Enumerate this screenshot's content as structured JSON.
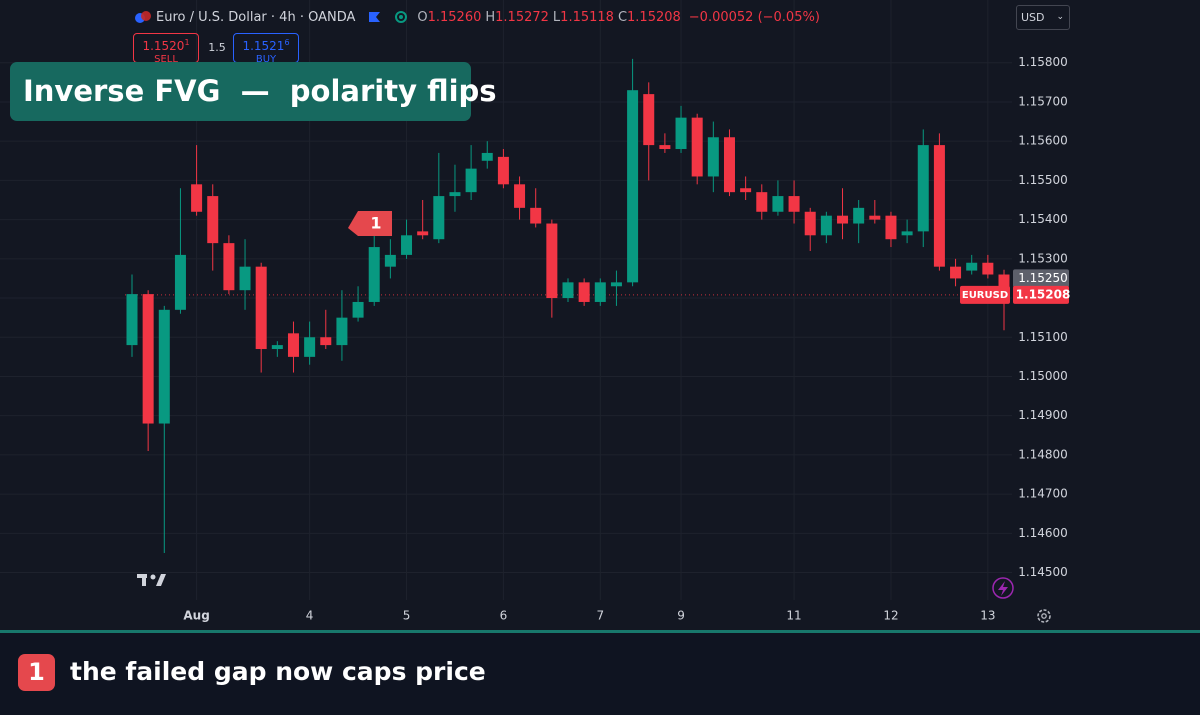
{
  "chart_data": {
    "type": "candlestick",
    "symbol_title": "Euro / U.S. Dollar · 4h · OANDA",
    "ohlc_header": [
      {
        "key": "O",
        "value": "1.15260"
      },
      {
        "key": "H",
        "value": "1.15272"
      },
      {
        "key": "L",
        "value": "1.15118"
      },
      {
        "key": "C",
        "value": "1.15208"
      }
    ],
    "change": "−0.00052 (−0.05%)",
    "sell": {
      "price": "1.1520",
      "pip": "1",
      "label": "SELL"
    },
    "spread": "1.5",
    "buy": {
      "price": "1.1521",
      "pip": "6",
      "label": "BUY"
    },
    "currency": "USD",
    "title": "Inverse FVG  —  polarity flips",
    "up_color": "#089981",
    "down_color": "#f23645",
    "categories": [
      null,
      null,
      null,
      null,
      "Aug",
      null,
      null,
      null,
      null,
      null,
      null,
      "4",
      null,
      null,
      null,
      null,
      null,
      "5",
      null,
      null,
      null,
      null,
      null,
      "6",
      null,
      null,
      null,
      null,
      null,
      "7",
      null,
      null,
      null,
      null,
      "9",
      null,
      null,
      null,
      null,
      null,
      null,
      "11",
      null,
      null,
      null,
      null,
      null,
      "12",
      null,
      null,
      null,
      null,
      null,
      "13",
      null
    ],
    "open": [
      1.1508,
      1.1521,
      1.1488,
      1.1517,
      1.1549,
      1.1546,
      1.1534,
      1.1522,
      1.1528,
      1.1507,
      1.1511,
      1.1505,
      1.151,
      1.1508,
      1.1515,
      1.1519,
      1.1528,
      1.1531,
      1.1537,
      1.1535,
      1.1546,
      1.1547,
      1.1555,
      1.1556,
      1.1549,
      1.1543,
      1.1539,
      1.152,
      1.1524,
      1.1519,
      1.1523,
      1.1524,
      1.1572,
      1.1559,
      1.1558,
      1.1566,
      1.1551,
      1.1561,
      1.1548,
      1.1547,
      1.1542,
      1.1546,
      1.1542,
      1.1536,
      1.1541,
      1.1539,
      1.1541,
      1.1541,
      1.1536,
      1.1537,
      1.1559,
      1.1528,
      1.1527,
      1.1529,
      1.1526
    ],
    "high": [
      1.1526,
      1.1522,
      1.1518,
      1.1548,
      1.1559,
      1.1549,
      1.1536,
      1.1535,
      1.1529,
      1.1509,
      1.1514,
      1.1514,
      1.1517,
      1.1522,
      1.1523,
      1.1537,
      1.1535,
      1.154,
      1.1545,
      1.1557,
      1.1554,
      1.1559,
      1.156,
      1.1558,
      1.1551,
      1.1548,
      1.154,
      1.1525,
      1.1525,
      1.1525,
      1.1527,
      1.1581,
      1.1575,
      1.1562,
      1.1569,
      1.1567,
      1.1565,
      1.1563,
      1.1551,
      1.1549,
      1.155,
      1.155,
      1.1543,
      1.1542,
      1.1548,
      1.1545,
      1.1545,
      1.1542,
      1.154,
      1.1563,
      1.1562,
      1.153,
      1.1531,
      1.1531,
      1.15272
    ],
    "low": [
      1.1505,
      1.1481,
      1.1455,
      1.1516,
      1.1541,
      1.1527,
      1.1521,
      1.1517,
      1.1501,
      1.1505,
      1.1501,
      1.1503,
      1.1507,
      1.1504,
      1.1514,
      1.1518,
      1.1525,
      1.153,
      1.1535,
      1.1534,
      1.1542,
      1.1545,
      1.1553,
      1.1548,
      1.154,
      1.1538,
      1.1515,
      1.1519,
      1.1518,
      1.1518,
      1.1518,
      1.1523,
      1.155,
      1.1557,
      1.1557,
      1.1549,
      1.1547,
      1.1546,
      1.1545,
      1.154,
      1.1541,
      1.1539,
      1.1532,
      1.1534,
      1.1535,
      1.1534,
      1.1539,
      1.1533,
      1.1534,
      1.1533,
      1.1527,
      1.1523,
      1.1526,
      1.1525,
      1.15118
    ],
    "close": [
      1.1521,
      1.1488,
      1.1517,
      1.1531,
      1.1542,
      1.1534,
      1.1522,
      1.1528,
      1.1507,
      1.1508,
      1.1505,
      1.151,
      1.1508,
      1.1515,
      1.1519,
      1.1533,
      1.1531,
      1.1536,
      1.1536,
      1.1546,
      1.1547,
      1.1553,
      1.1557,
      1.1549,
      1.1543,
      1.1539,
      1.152,
      1.1524,
      1.1519,
      1.1524,
      1.1524,
      1.1573,
      1.1559,
      1.1558,
      1.1566,
      1.1551,
      1.1561,
      1.1547,
      1.1547,
      1.1542,
      1.1546,
      1.1542,
      1.1536,
      1.1541,
      1.1539,
      1.1543,
      1.154,
      1.1535,
      1.1537,
      1.1559,
      1.1528,
      1.1525,
      1.1529,
      1.1526,
      1.15208
    ],
    "ylim": [
      1.1443,
      1.1596
    ],
    "yticks": [
      {
        "value": 1.158,
        "label": "1.15800"
      },
      {
        "value": 1.157,
        "label": "1.15700"
      },
      {
        "value": 1.156,
        "label": "1.15600"
      },
      {
        "value": 1.155,
        "label": "1.15500"
      },
      {
        "value": 1.154,
        "label": "1.15400"
      },
      {
        "value": 1.153,
        "label": "1.15300"
      },
      {
        "value": 1.152,
        "label": "1.15200"
      },
      {
        "value": 1.151,
        "label": "1.15100"
      },
      {
        "value": 1.15,
        "label": "1.15000"
      },
      {
        "value": 1.149,
        "label": "1.14900"
      },
      {
        "value": 1.148,
        "label": "1.14800"
      },
      {
        "value": 1.147,
        "label": "1.14700"
      },
      {
        "value": 1.146,
        "label": "1.14600"
      },
      {
        "value": 1.145,
        "label": "1.14500"
      }
    ],
    "grid": true,
    "marker_price": {
      "value": 1.1525,
      "label": "1.15250"
    },
    "current_price": {
      "name": "EURUSD",
      "value": 1.15208
    },
    "annotations": [
      {
        "text": "1",
        "caption": "the failed gap now caps price"
      }
    ]
  }
}
